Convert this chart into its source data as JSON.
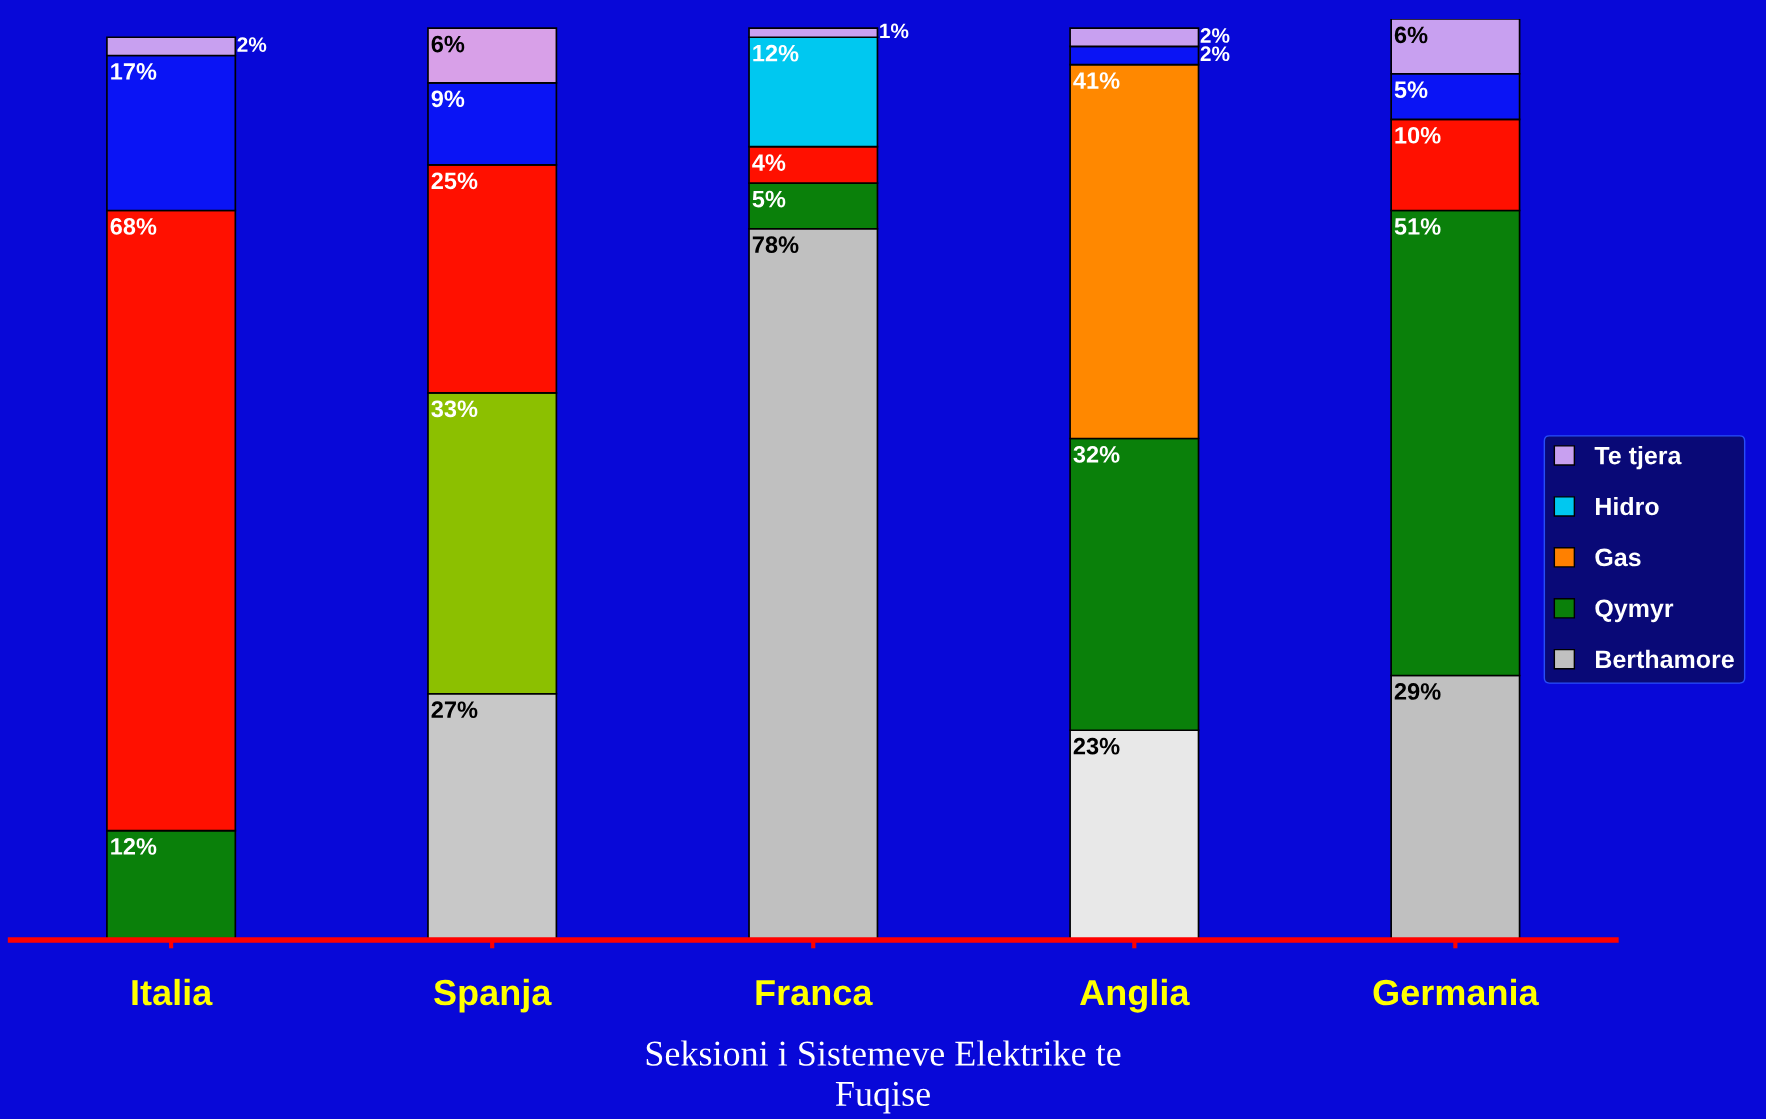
{
  "chart_data": {
    "type": "bar",
    "stacked": true,
    "legend": "right",
    "categories": [
      "Italia",
      "Spanja",
      "Franca",
      "Anglia",
      "Germania"
    ],
    "series": [
      {
        "name": "Berthamore",
        "color": "#c0c0c0",
        "values": [
          null,
          27,
          78,
          23,
          29
        ],
        "value_labels": [
          null,
          "27%",
          "78%",
          "23%",
          "29%"
        ],
        "colors": [
          "#c0c0c0",
          "#c8c8c8",
          "#c0c0c0",
          "#e8e8e8",
          "#c0c0c0"
        ]
      },
      {
        "name": "Qymyr",
        "color": "#0a800a",
        "values": [
          12,
          33,
          5,
          32,
          51
        ],
        "value_labels": [
          "12%",
          "33%",
          "5%",
          "32%",
          "51%"
        ],
        "colors": [
          "#0a800a",
          "#8cc000",
          "#0a800a",
          "#0a800a",
          "#0a800a"
        ]
      },
      {
        "name": "Gas",
        "color": "#ff8000",
        "values": [
          68,
          25,
          4,
          41,
          10
        ],
        "value_labels": [
          "68%",
          "25%",
          "4%",
          "41%",
          "10%"
        ],
        "colors": [
          "#ff1000",
          "#ff1000",
          "#ff1000",
          "#ff8800",
          "#ff1000"
        ]
      },
      {
        "name": "Hidro",
        "color": "#00c8f0",
        "values": [
          17,
          9,
          12,
          2,
          5
        ],
        "value_labels": [
          "17%",
          "9%",
          "12%",
          "2%",
          "5%"
        ],
        "colors": [
          "#0a14f5",
          "#0a14f5",
          "#00c8f0",
          "#0a14f5",
          "#0a14f5"
        ]
      },
      {
        "name": "Te tjera",
        "color": "#c8a0f0",
        "values": [
          2,
          6,
          1,
          2,
          6
        ],
        "value_labels": [
          "2%",
          "6%",
          "1%",
          "2%",
          "6%"
        ],
        "colors": [
          "#c8a0f0",
          "#d8a0e8",
          "#c8a0f0",
          "#c8a0f0",
          "#c8a0f0"
        ]
      }
    ],
    "annotations": [
      "Seksioni i Sistemeve Elektrike te\nFuqise"
    ]
  }
}
